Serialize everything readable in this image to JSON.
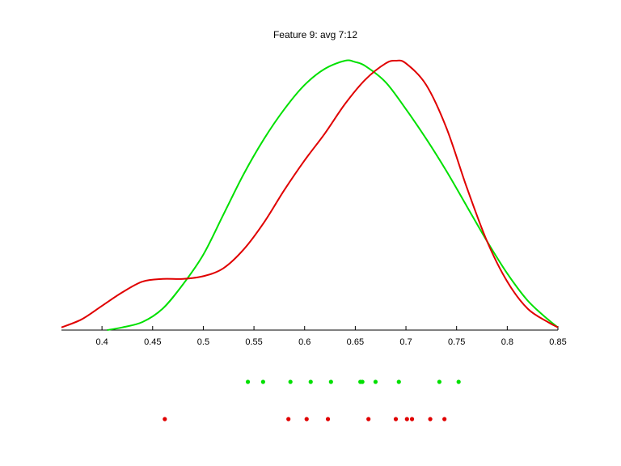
{
  "chart_data": {
    "type": "line",
    "title": "Feature 9: avg 7:12",
    "xlabel": "",
    "ylabel": "",
    "xlim": [
      0.36,
      0.85
    ],
    "ylim": [
      0,
      1
    ],
    "x_ticks": [
      "0.4",
      "0.45",
      "0.5",
      "0.55",
      "0.6",
      "0.65",
      "0.7",
      "0.75",
      "0.8",
      "0.85"
    ],
    "grid": false,
    "series": [
      {
        "color": "#00e000",
        "x": [
          0.405,
          0.42,
          0.44,
          0.46,
          0.48,
          0.5,
          0.52,
          0.54,
          0.56,
          0.58,
          0.6,
          0.62,
          0.64,
          0.65,
          0.66,
          0.68,
          0.7,
          0.72,
          0.74,
          0.76,
          0.78,
          0.8,
          0.82,
          0.84,
          0.85
        ],
        "y": [
          0.0,
          0.01,
          0.03,
          0.08,
          0.17,
          0.28,
          0.43,
          0.58,
          0.71,
          0.82,
          0.91,
          0.97,
          1.0,
          0.995,
          0.98,
          0.92,
          0.82,
          0.71,
          0.59,
          0.46,
          0.33,
          0.21,
          0.11,
          0.04,
          0.01
        ]
      },
      {
        "color": "#e00000",
        "x": [
          0.36,
          0.38,
          0.4,
          0.42,
          0.44,
          0.46,
          0.48,
          0.5,
          0.52,
          0.54,
          0.56,
          0.58,
          0.6,
          0.62,
          0.64,
          0.66,
          0.68,
          0.69,
          0.7,
          0.72,
          0.74,
          0.76,
          0.78,
          0.8,
          0.82,
          0.84,
          0.85
        ],
        "y": [
          0.01,
          0.04,
          0.09,
          0.14,
          0.18,
          0.19,
          0.19,
          0.2,
          0.23,
          0.3,
          0.4,
          0.52,
          0.63,
          0.73,
          0.84,
          0.93,
          0.99,
          1.0,
          0.99,
          0.91,
          0.75,
          0.53,
          0.33,
          0.18,
          0.08,
          0.03,
          0.01
        ]
      }
    ],
    "points": [
      {
        "color": "#00e000",
        "x": [
          0.544,
          0.559,
          0.586,
          0.606,
          0.626,
          0.655,
          0.657,
          0.67,
          0.693,
          0.733,
          0.752
        ]
      },
      {
        "color": "#e00000",
        "x": [
          0.462,
          0.584,
          0.602,
          0.623,
          0.663,
          0.69,
          0.701,
          0.706,
          0.724,
          0.738
        ]
      }
    ]
  }
}
